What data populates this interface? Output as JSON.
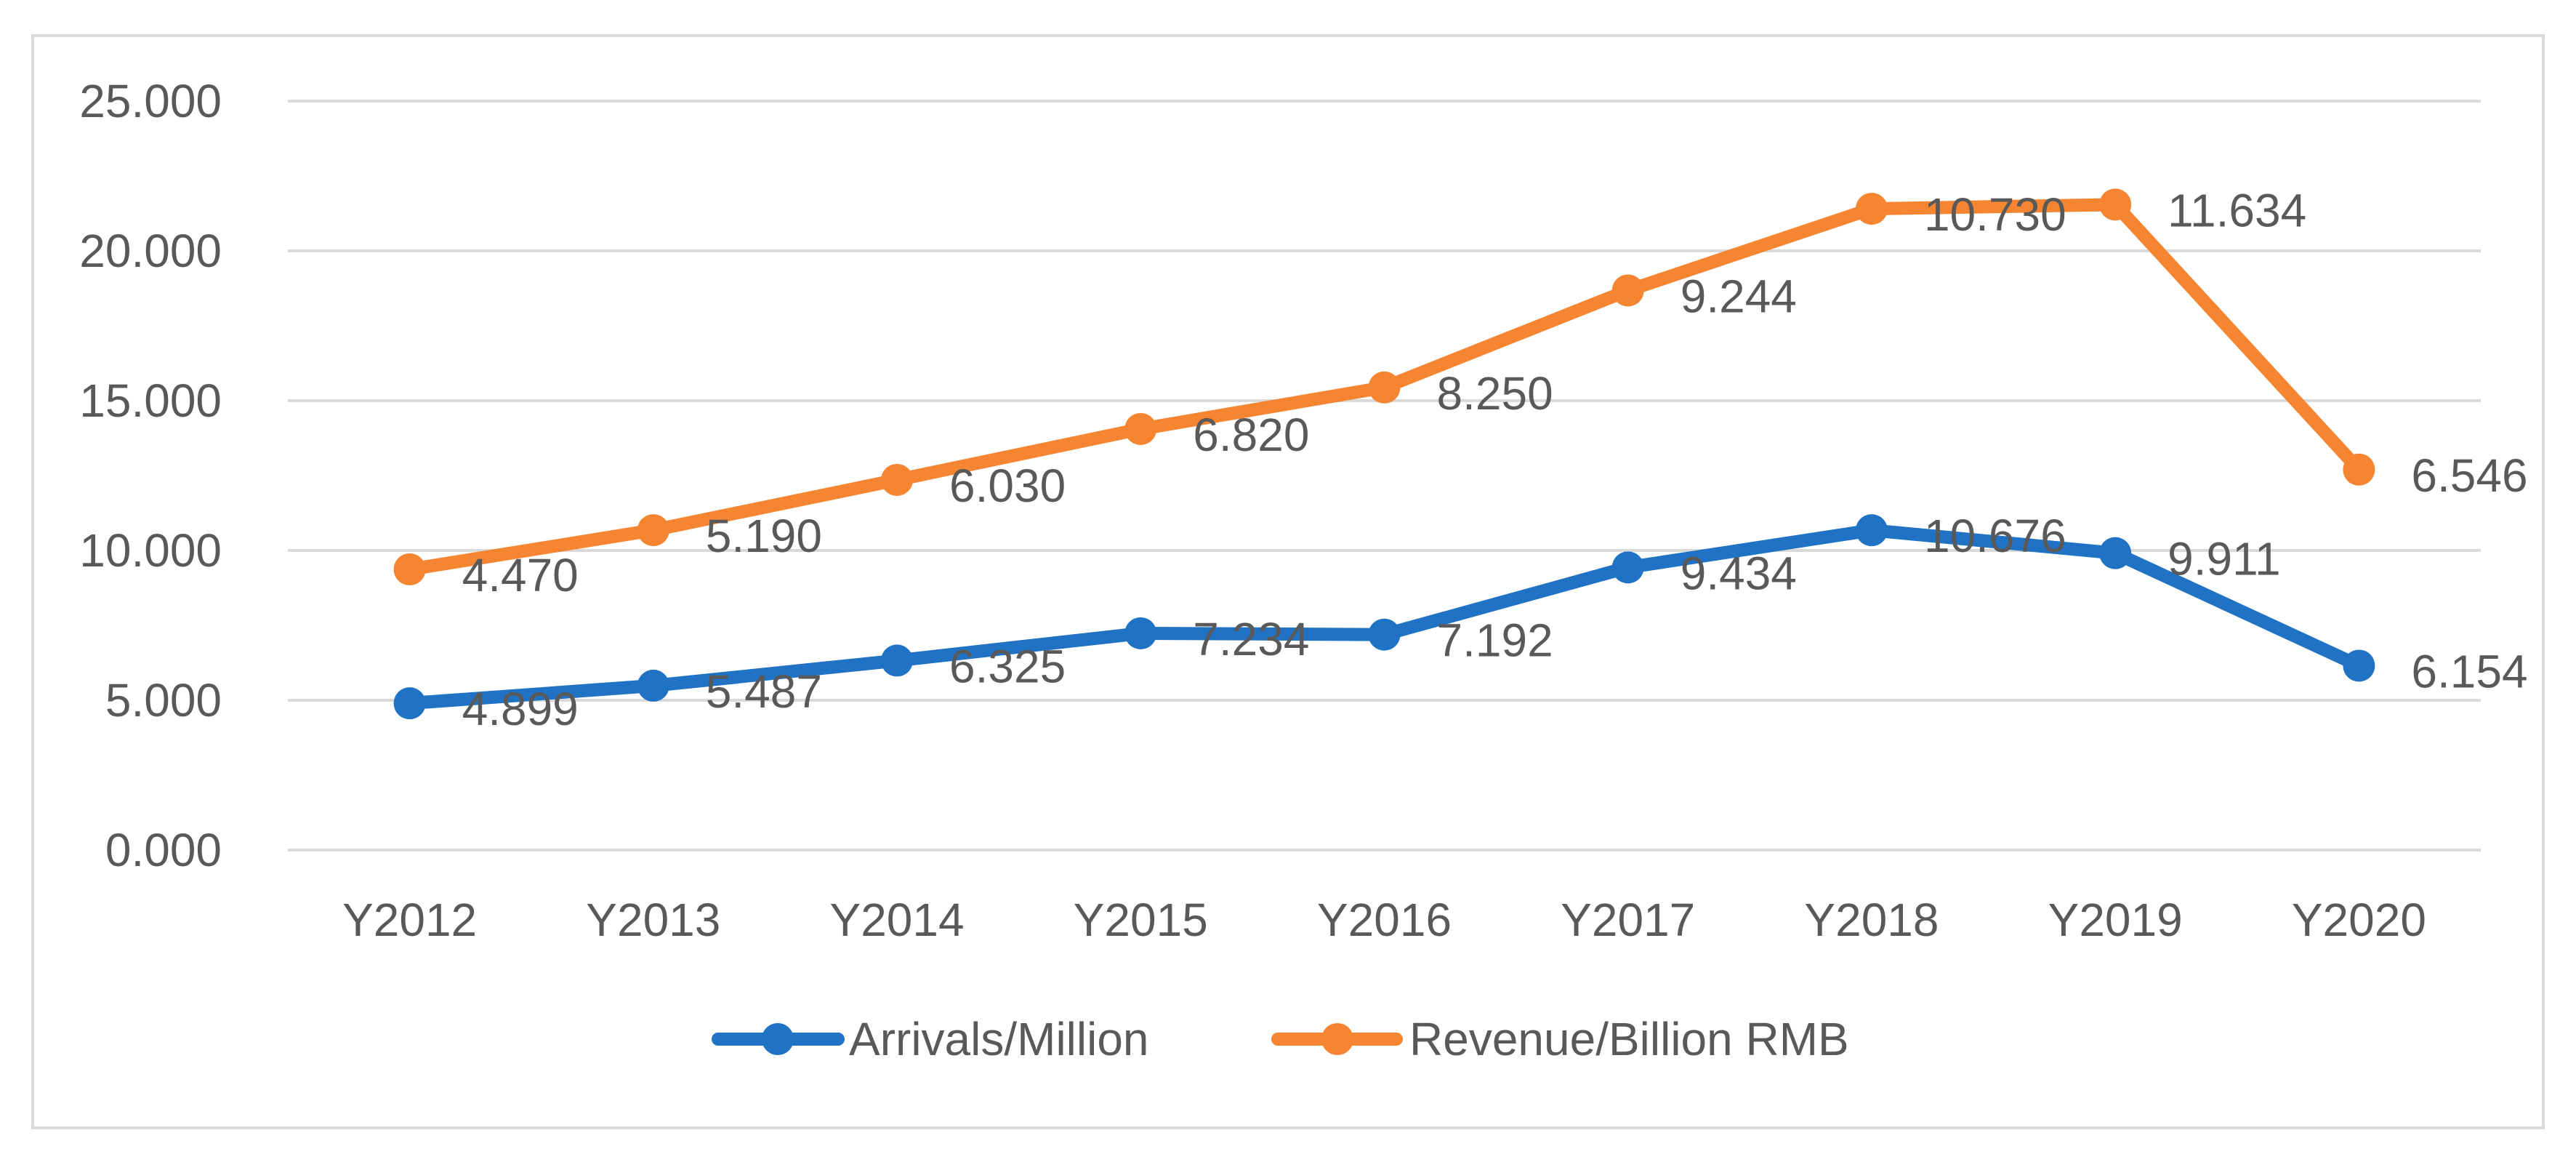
{
  "chart_data": {
    "type": "line",
    "stacked": true,
    "title": "",
    "xlabel": "",
    "ylabel": "",
    "categories": [
      "Y2012",
      "Y2013",
      "Y2014",
      "Y2015",
      "Y2016",
      "Y2017",
      "Y2018",
      "Y2019",
      "Y2020"
    ],
    "ylim": [
      0,
      25
    ],
    "yticks": [
      0,
      5,
      10,
      15,
      20,
      25
    ],
    "ytick_labels": [
      "0.000",
      "5.000",
      "10.000",
      "15.000",
      "20.000",
      "25.000"
    ],
    "grid": true,
    "legend": "bottom-center",
    "series": [
      {
        "name": "Arrivals/Million",
        "color": "#1f72c4",
        "values": [
          4.899,
          5.487,
          6.325,
          7.234,
          7.192,
          9.434,
          10.676,
          9.911,
          6.154
        ],
        "labels": [
          "4.899",
          "5.487",
          "6.325",
          "7.234",
          "7.192",
          "9.434",
          "10.676",
          "9.911",
          "6.154"
        ]
      },
      {
        "name": "Revenue/Billion RMB",
        "color": "#f58530",
        "values": [
          4.47,
          5.19,
          6.03,
          6.82,
          8.25,
          9.244,
          10.73,
          11.634,
          6.546
        ],
        "labels": [
          "4.470",
          "5.190",
          "6.030",
          "6.820",
          "8.250",
          "9.244",
          "10.730",
          "11.634",
          "6.546"
        ]
      }
    ]
  }
}
